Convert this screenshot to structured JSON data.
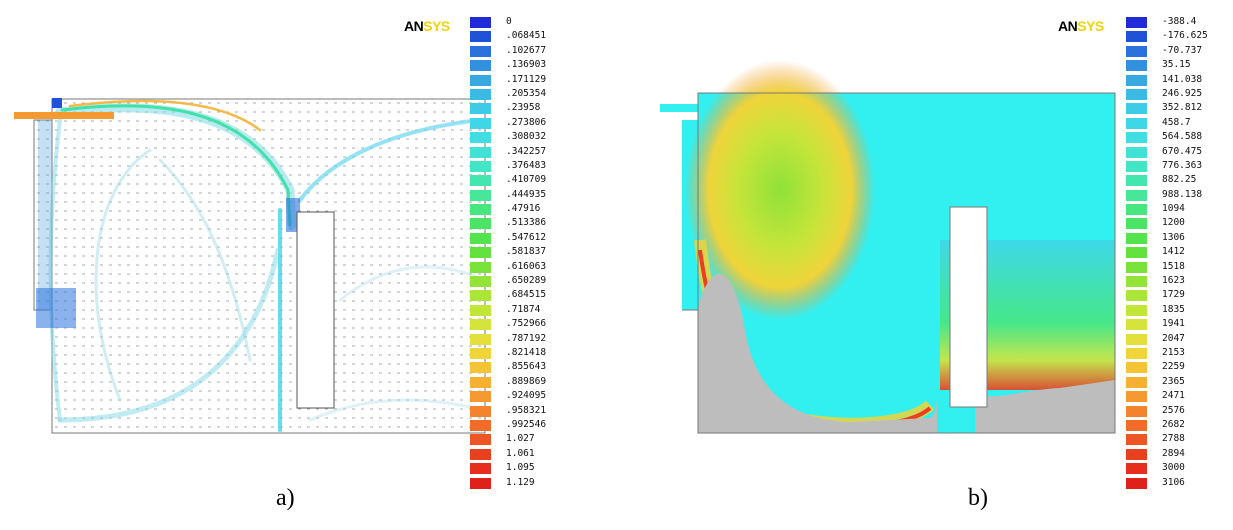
{
  "panels": [
    {
      "logo": {
        "an": "AN",
        "sys": "SYS"
      },
      "caption": "a)",
      "legend": {
        "labels": [
          "0",
          ".068451",
          ".102677",
          ".136903",
          ".171129",
          ".205354",
          ".23958",
          ".273806",
          ".308032",
          ".342257",
          ".376483",
          ".410709",
          ".444935",
          ".47916",
          ".513386",
          ".547612",
          ".581837",
          ".616063",
          ".650289",
          ".684515",
          ".71874",
          ".752966",
          ".787192",
          ".821418",
          ".855643",
          ".889869",
          ".924095",
          ".958321",
          ".992546",
          "1.027",
          "1.061",
          "1.095",
          "1.129"
        ]
      }
    },
    {
      "logo": {
        "an": "AN",
        "sys": "SYS"
      },
      "caption": "b)",
      "legend": {
        "labels": [
          "-388.4",
          "-176.625",
          "-70.737",
          "35.15",
          "141.038",
          "246.925",
          "352.812",
          "458.7",
          "564.588",
          "670.475",
          "776.363",
          "882.25",
          "988.138",
          "1094",
          "1200",
          "1306",
          "1412",
          "1518",
          "1623",
          "1729",
          "1835",
          "1941",
          "2047",
          "2153",
          "2259",
          "2365",
          "2471",
          "2576",
          "2682",
          "2788",
          "2894",
          "3000",
          "3106"
        ]
      }
    }
  ],
  "colors": {
    "scale": [
      "#1f2bd6",
      "#1f52d9",
      "#2b72dc",
      "#3390de",
      "#38a8e1",
      "#3bbbe4",
      "#3dcbe6",
      "#3fd6e7",
      "#40dde2",
      "#41e2d5",
      "#42e5c4",
      "#44e6b0",
      "#46e799",
      "#48e67f",
      "#4be566",
      "#52e34f",
      "#63e23f",
      "#7ae23a",
      "#93e338",
      "#abe537",
      "#c1e538",
      "#d4e43a",
      "#e4e03b",
      "#efd43a",
      "#f4c437",
      "#f6b034",
      "#f59a30",
      "#f3832c",
      "#f06c28",
      "#ed5524",
      "#e94020",
      "#e52e1d",
      "#e0211b"
    ],
    "cyan": "#33f0f0",
    "gray": "#bdbdbd",
    "logo_yellow": "#f2d20a"
  }
}
